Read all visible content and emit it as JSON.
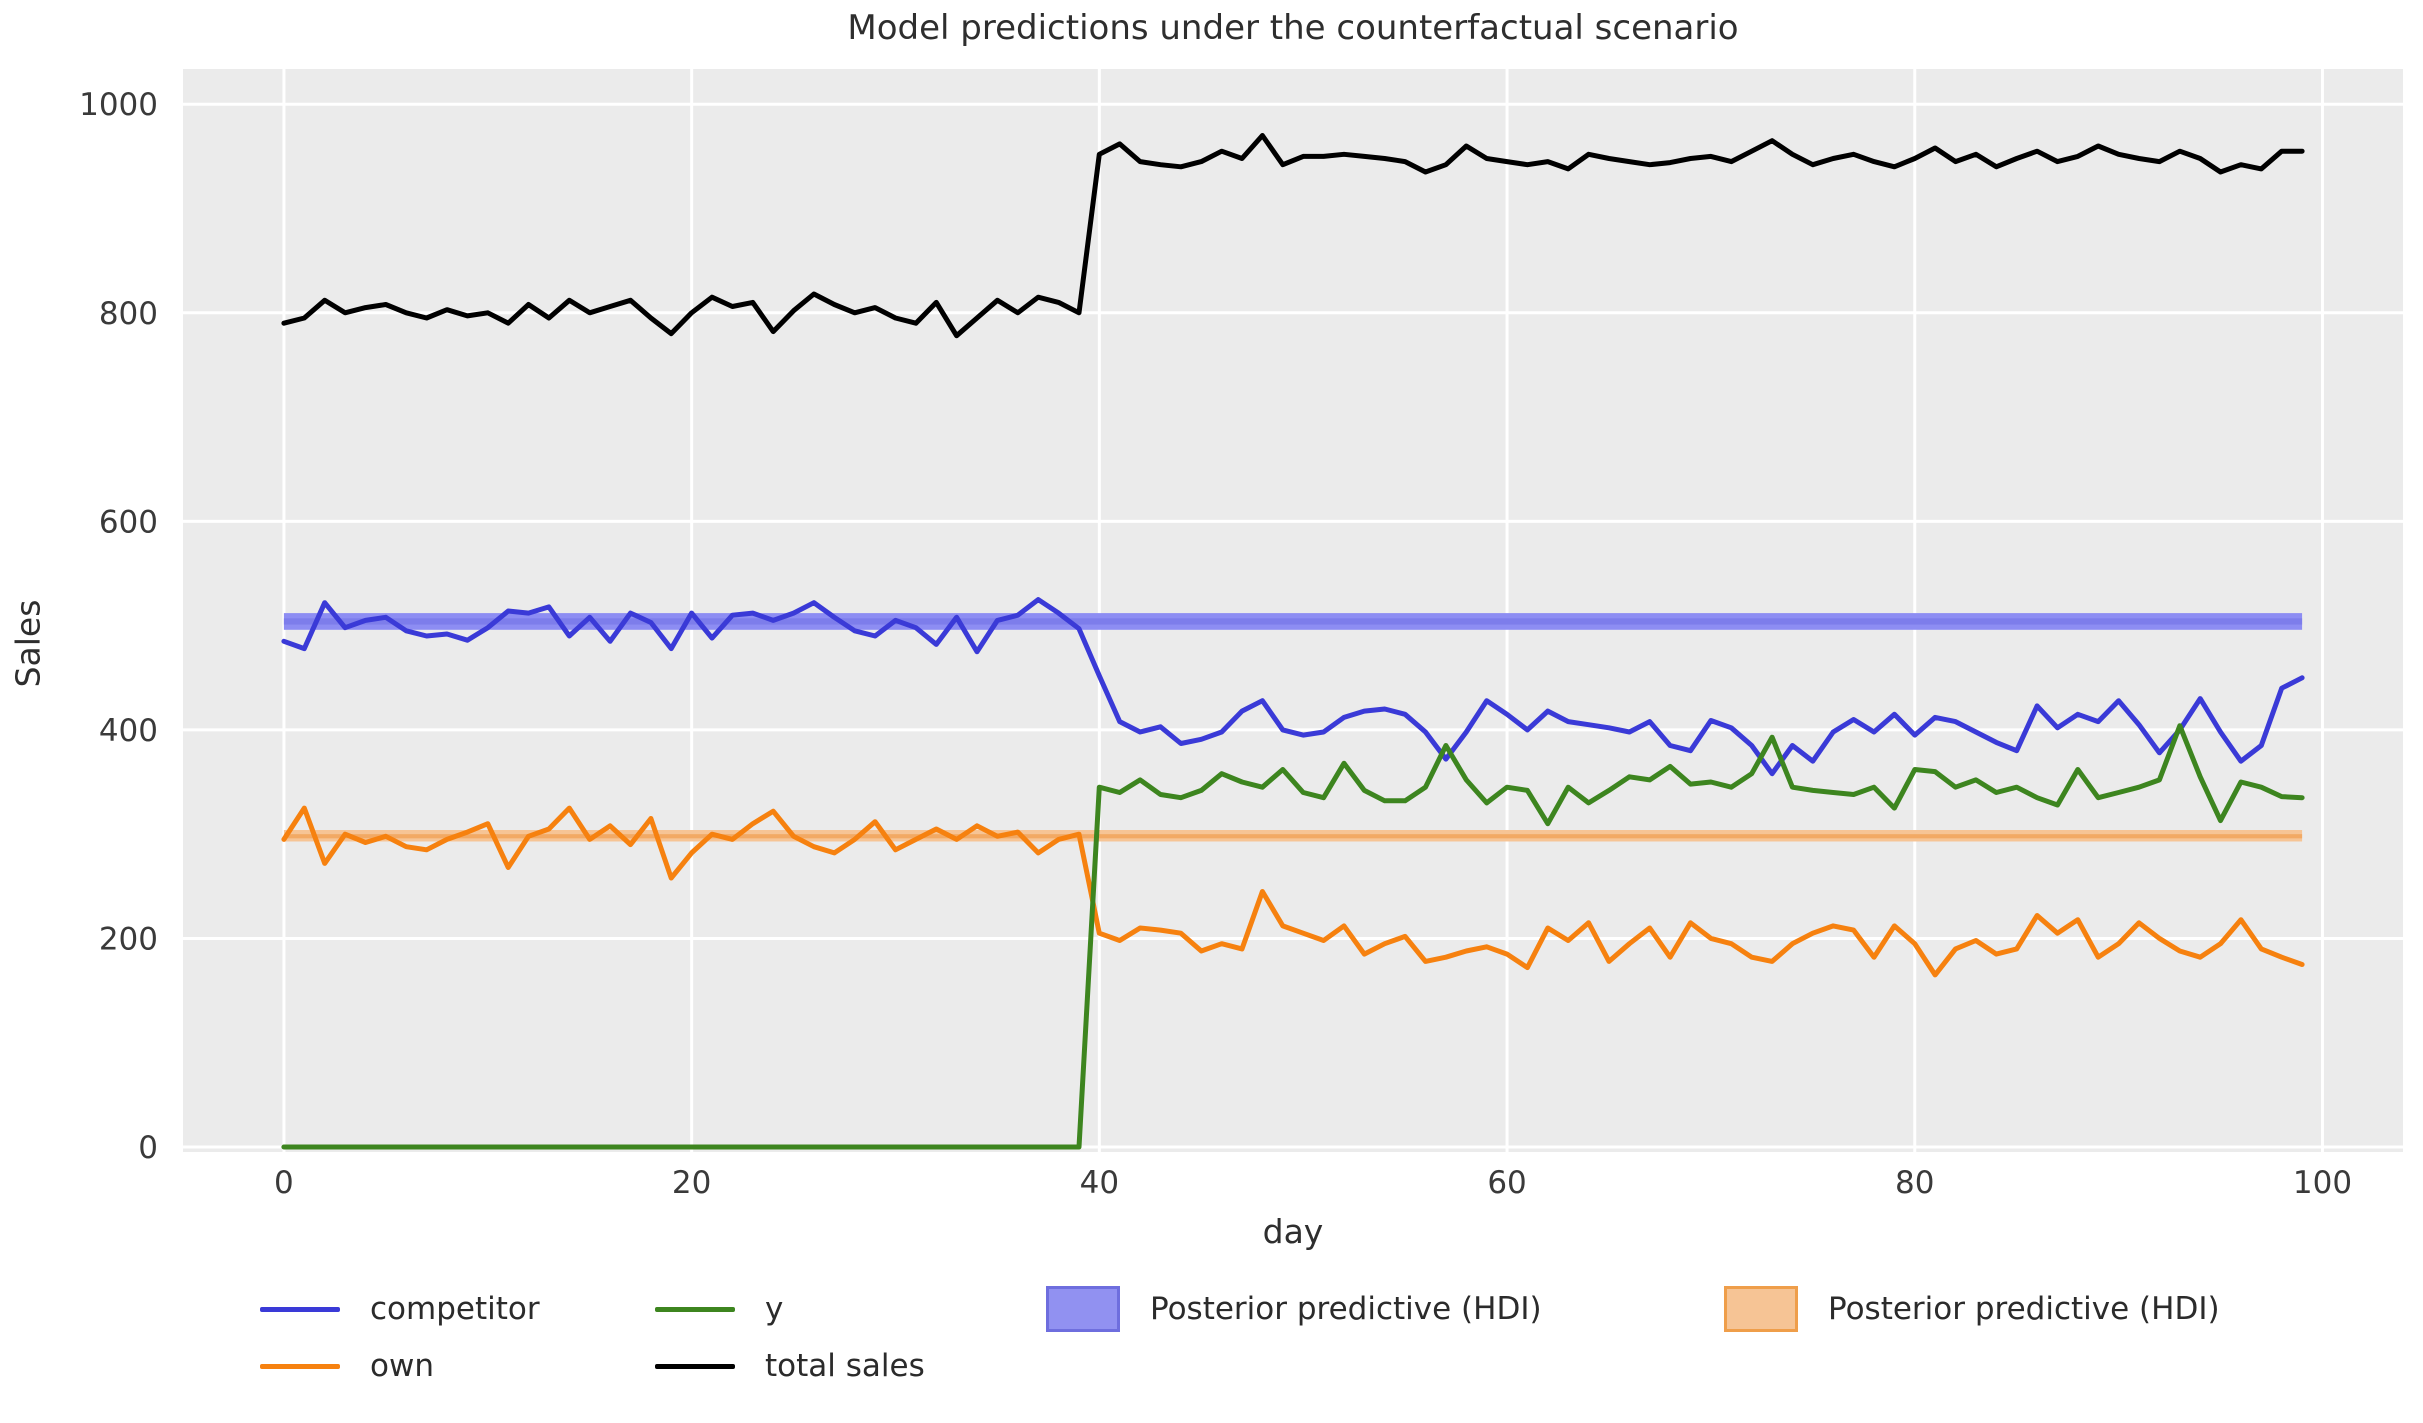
{
  "title": "Model predictions under the counterfactual scenario",
  "axes": {
    "xlabel": "day",
    "ylabel": "Sales",
    "x_ticks": [
      0,
      20,
      40,
      60,
      80,
      100
    ],
    "y_ticks": [
      0,
      200,
      400,
      600,
      800,
      1000
    ]
  },
  "legend": {
    "items": [
      {
        "label": "competitor",
        "type": "line",
        "color": "#3a3ad7"
      },
      {
        "label": "own",
        "type": "line",
        "color": "#f6810f"
      },
      {
        "label": "y",
        "type": "line",
        "color": "#3d851f"
      },
      {
        "label": "total sales",
        "type": "line",
        "color": "#000000"
      },
      {
        "label": "Posterior predictive (HDI)",
        "type": "patch",
        "fill": "#9191f1",
        "edge": "#6e6ede"
      },
      {
        "label": "Posterior predictive (HDI)",
        "type": "patch",
        "fill": "#f6c495",
        "edge": "#ef9e4a"
      }
    ]
  },
  "chart_data": {
    "type": "line",
    "title": "Model predictions under the counterfactual scenario",
    "xlabel": "day",
    "ylabel": "Sales",
    "xlim": [
      -4.95,
      103.95
    ],
    "ylim": [
      -4.8,
      1033.8
    ],
    "grid": true,
    "background": "#ebebeb",
    "gridline_color": "#ffffff",
    "x": {
      "start": 0,
      "end": 99,
      "step": 1
    },
    "hdi_bands": [
      {
        "name": "Posterior predictive (HDI)",
        "series": "competitor",
        "x_from": 0,
        "x_to": 99,
        "lo": 496,
        "hi": 512,
        "inner_lo": 501,
        "inner_hi": 507,
        "fill": "#8d8df3",
        "inner_fill": "#7d7deb"
      },
      {
        "name": "Posterior predictive (HDI)",
        "series": "own",
        "x_from": 0,
        "x_to": 99,
        "lo": 293,
        "hi": 304,
        "inner_lo": 296,
        "inner_hi": 300,
        "fill": "#f6c495",
        "inner_fill": "#f2a964"
      }
    ],
    "series": [
      {
        "name": "competitor",
        "color": "#3a3ad7",
        "values": [
          485,
          478,
          522,
          498,
          505,
          508,
          495,
          490,
          492,
          486,
          498,
          514,
          512,
          518,
          490,
          508,
          485,
          512,
          503,
          478,
          512,
          488,
          510,
          512,
          505,
          512,
          522,
          508,
          495,
          490,
          505,
          498,
          482,
          508,
          475,
          505,
          510,
          525,
          512,
          497,
          452,
          408,
          398,
          403,
          387,
          391,
          398,
          418,
          428,
          400,
          395,
          398,
          412,
          418,
          420,
          415,
          398,
          372,
          398,
          428,
          415,
          400,
          418,
          408,
          405,
          402,
          398,
          408,
          385,
          380,
          409,
          402,
          385,
          358,
          385,
          370,
          398,
          410,
          398,
          415,
          395,
          412,
          408,
          398,
          388,
          380,
          423,
          402,
          415,
          408,
          428,
          405,
          378,
          400,
          430,
          398,
          370,
          385,
          440,
          450
        ]
      },
      {
        "name": "own",
        "color": "#f6810f",
        "values": [
          295,
          325,
          272,
          300,
          292,
          298,
          288,
          285,
          295,
          302,
          310,
          268,
          298,
          305,
          325,
          295,
          308,
          290,
          315,
          258,
          282,
          300,
          295,
          310,
          322,
          298,
          288,
          282,
          295,
          312,
          285,
          295,
          305,
          295,
          308,
          298,
          302,
          282,
          295,
          300,
          205,
          198,
          210,
          208,
          205,
          188,
          195,
          190,
          245,
          212,
          205,
          198,
          212,
          185,
          195,
          202,
          178,
          182,
          188,
          192,
          185,
          172,
          210,
          198,
          215,
          178,
          195,
          210,
          182,
          215,
          200,
          195,
          182,
          178,
          195,
          205,
          212,
          208,
          182,
          212,
          195,
          165,
          190,
          198,
          185,
          190,
          222,
          205,
          218,
          182,
          195,
          215,
          200,
          188,
          182,
          195,
          218,
          190,
          182,
          175
        ]
      },
      {
        "name": "y",
        "color": "#3d851f",
        "values": [
          0,
          0,
          0,
          0,
          0,
          0,
          0,
          0,
          0,
          0,
          0,
          0,
          0,
          0,
          0,
          0,
          0,
          0,
          0,
          0,
          0,
          0,
          0,
          0,
          0,
          0,
          0,
          0,
          0,
          0,
          0,
          0,
          0,
          0,
          0,
          0,
          0,
          0,
          0,
          0,
          345,
          340,
          352,
          338,
          335,
          342,
          358,
          350,
          345,
          362,
          340,
          335,
          368,
          342,
          332,
          332,
          345,
          385,
          352,
          330,
          345,
          342,
          310,
          345,
          330,
          342,
          355,
          352,
          365,
          348,
          350,
          345,
          358,
          393,
          345,
          342,
          340,
          338,
          345,
          325,
          362,
          360,
          345,
          352,
          340,
          345,
          335,
          328,
          362,
          335,
          340,
          345,
          352,
          404,
          355,
          313,
          350,
          345,
          336,
          335
        ]
      },
      {
        "name": "total sales",
        "color": "#000000",
        "values": [
          790,
          795,
          812,
          800,
          805,
          808,
          800,
          795,
          803,
          797,
          800,
          790,
          808,
          795,
          812,
          800,
          806,
          812,
          795,
          780,
          800,
          815,
          806,
          810,
          782,
          802,
          818,
          808,
          800,
          805,
          795,
          790,
          810,
          778,
          795,
          812,
          800,
          815,
          810,
          800,
          952,
          962,
          945,
          942,
          940,
          945,
          955,
          948,
          970,
          942,
          950,
          950,
          952,
          950,
          948,
          945,
          935,
          942,
          960,
          948,
          945,
          942,
          945,
          938,
          952,
          948,
          945,
          942,
          944,
          948,
          950,
          945,
          955,
          965,
          952,
          942,
          948,
          952,
          945,
          940,
          948,
          958,
          945,
          952,
          940,
          948,
          955,
          945,
          950,
          960,
          952,
          948,
          945,
          955,
          948,
          935,
          942,
          938,
          955,
          955
        ]
      }
    ]
  }
}
